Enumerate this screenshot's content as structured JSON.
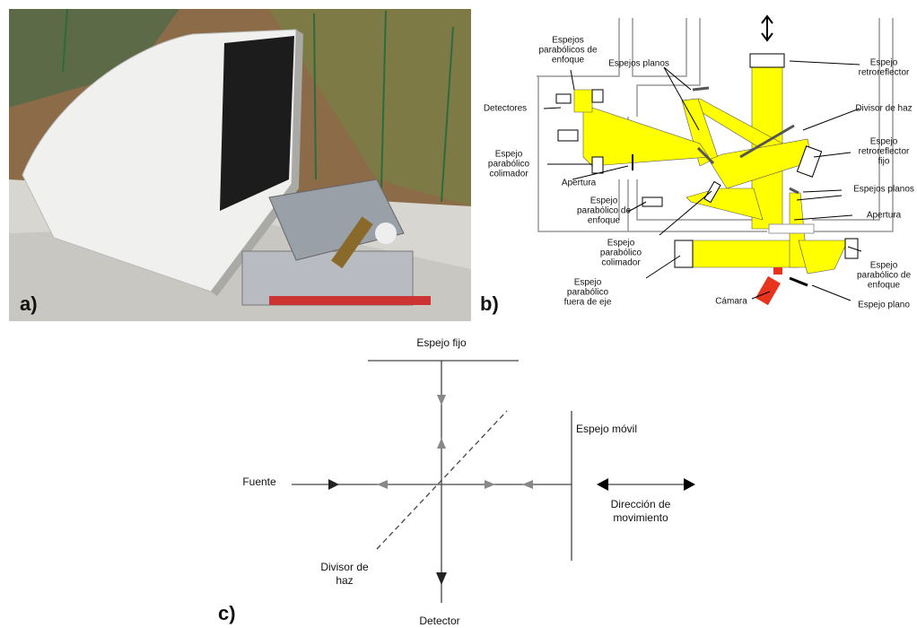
{
  "panels": {
    "a": "a)",
    "b": "b)",
    "c": "c)"
  },
  "diagram_b": {
    "labels": [
      {
        "lines": [
          "Espejos",
          "parabólicos de",
          "enfoque"
        ]
      },
      {
        "lines": [
          "Espejos planos"
        ]
      },
      {
        "lines": [
          "Detectores"
        ]
      },
      {
        "lines": [
          "Espejo",
          "retroreflector"
        ]
      },
      {
        "lines": [
          "Divisor de haz"
        ]
      },
      {
        "lines": [
          "Espejo",
          "retroreflector",
          "fijo"
        ]
      },
      {
        "lines": [
          "Espejo",
          "parabólico",
          "colimador"
        ]
      },
      {
        "lines": [
          "Apertura"
        ]
      },
      {
        "lines": [
          "Espejo",
          "parabólico de",
          "enfoque"
        ]
      },
      {
        "lines": [
          "Espejos planos"
        ]
      },
      {
        "lines": [
          "Apertura"
        ]
      },
      {
        "lines": [
          "Espejo",
          "parabólico",
          "colimador"
        ]
      },
      {
        "lines": [
          "Espejo",
          "parabólico",
          "fuera de eje"
        ]
      },
      {
        "lines": [
          "Cámara"
        ]
      },
      {
        "lines": [
          "Espejo",
          "parabólico de",
          "enfoque"
        ]
      },
      {
        "lines": [
          "Espejo plano"
        ]
      }
    ]
  },
  "diagram_c": {
    "labels": [
      {
        "lines": [
          "Espejo fijo"
        ]
      },
      {
        "lines": [
          "Espejo móvil"
        ]
      },
      {
        "lines": [
          "Fuente"
        ]
      },
      {
        "lines": [
          "Dirección de",
          "movimiento"
        ]
      },
      {
        "lines": [
          "Divisor de",
          "haz"
        ]
      },
      {
        "lines": [
          "Detector"
        ]
      }
    ]
  }
}
